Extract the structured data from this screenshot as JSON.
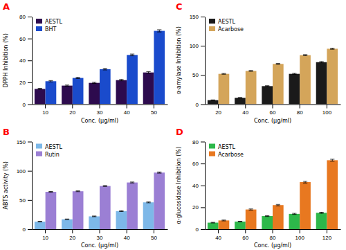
{
  "chart_data": [
    {
      "type": "bar",
      "title": "A",
      "xlabel": "Conc. (μg/ml)",
      "ylabel": "DPPH Inhibition (%)",
      "categories": [
        "10",
        "20",
        "30",
        "40",
        "50"
      ],
      "series": [
        {
          "name": "AESTL",
          "color": "#2d0b4e",
          "values": [
            14,
            17,
            19.5,
            22,
            29
          ],
          "errors": [
            0.5,
            0.5,
            0.6,
            0.6,
            0.8
          ]
        },
        {
          "name": "BHT",
          "color": "#1a4bcc",
          "values": [
            21,
            24,
            32,
            45,
            67
          ],
          "errors": [
            0.6,
            0.6,
            0.7,
            0.8,
            1.0
          ]
        }
      ],
      "ylim": [
        0,
        80
      ],
      "yticks": [
        0,
        20,
        40,
        60,
        80
      ],
      "grid": false,
      "legend": "upper left"
    },
    {
      "type": "bar",
      "title": "B",
      "xlabel": "Conc. (μg/ml)",
      "ylabel": "ABTS activity (%)",
      "categories": [
        "10",
        "20",
        "30",
        "40",
        "50"
      ],
      "series": [
        {
          "name": "AESTL",
          "color": "#7db8e8",
          "values": [
            13,
            17,
            22,
            31,
            46
          ],
          "errors": [
            0.5,
            0.5,
            0.6,
            0.7,
            0.8
          ]
        },
        {
          "name": "Rutin",
          "color": "#9b7fd4",
          "values": [
            64,
            65,
            74,
            80,
            97
          ],
          "errors": [
            0.6,
            0.7,
            0.8,
            0.8,
            1.0
          ]
        }
      ],
      "ylim": [
        0,
        150
      ],
      "yticks": [
        0,
        50,
        100,
        150
      ],
      "grid": false,
      "legend": "upper left"
    },
    {
      "type": "bar",
      "title": "C",
      "xlabel": "Conc. (μg/ml)",
      "ylabel": "α-amylase Inhibition (%)",
      "categories": [
        "20",
        "40",
        "60",
        "80",
        "100"
      ],
      "series": [
        {
          "name": "AESTL",
          "color": "#1a1a1a",
          "values": [
            7,
            11,
            31,
            52,
            72
          ],
          "errors": [
            0.4,
            0.5,
            0.7,
            0.9,
            1.0
          ]
        },
        {
          "name": "Acarbose",
          "color": "#d4a55a",
          "values": [
            52,
            57,
            69,
            84,
            95
          ],
          "errors": [
            0.7,
            0.7,
            0.8,
            0.9,
            0.9
          ]
        }
      ],
      "ylim": [
        0,
        150
      ],
      "yticks": [
        0,
        50,
        100,
        150
      ],
      "grid": false,
      "legend": "upper left"
    },
    {
      "type": "bar",
      "title": "D",
      "xlabel": "Conc. (μg/ml)",
      "ylabel": "α-glucosidase Inhibition (%)",
      "categories": [
        "40",
        "60",
        "80",
        "100",
        "120"
      ],
      "series": [
        {
          "name": "AESTL",
          "color": "#2db84a",
          "values": [
            6,
            7,
            12,
            14,
            15
          ],
          "errors": [
            0.3,
            0.3,
            0.4,
            0.5,
            0.5
          ]
        },
        {
          "name": "Acarbose",
          "color": "#e87820",
          "values": [
            8,
            18,
            22,
            43,
            63
          ],
          "errors": [
            0.4,
            0.5,
            0.6,
            0.8,
            0.9
          ]
        }
      ],
      "ylim": [
        0,
        80
      ],
      "yticks": [
        0,
        20,
        40,
        60,
        80
      ],
      "grid": false,
      "legend": "upper left"
    }
  ]
}
